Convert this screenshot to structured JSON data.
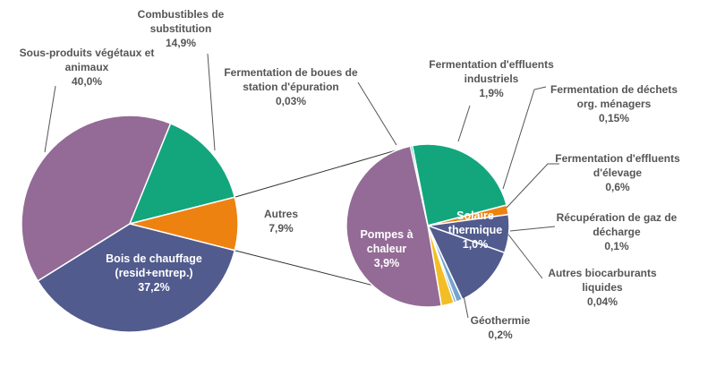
{
  "chart_data": {
    "type": "pie",
    "title": "",
    "colors": {
      "sous_produits": "#936B96",
      "combustibles": "#13A67D",
      "autres": "#EE8210",
      "bois": "#515B8E",
      "solaire": "#515B8E",
      "pompes": "#936B96",
      "geothermie": "#F3BE25",
      "autres_biocarb": "#74A5CF",
      "recup_gaz": "#74A5CF",
      "ferm_elevage": "#515B8E",
      "ferm_menagers": "#EE8210",
      "ferm_industriels": "#13A67D",
      "ferm_boues": "#13A67D",
      "separator": "#ffffff"
    },
    "main_pie": {
      "slices": [
        {
          "key": "sous_produits",
          "lines": [
            "Sous-produits végétaux et",
            "animaux"
          ],
          "pct_label": "40,0%",
          "value": 40.0
        },
        {
          "key": "combustibles",
          "lines": [
            "Combustibles de",
            "substitution"
          ],
          "pct_label": "14,9%",
          "value": 14.9
        },
        {
          "key": "autres",
          "lines": [
            "Autres"
          ],
          "pct_label": "7,9%",
          "value": 7.9
        },
        {
          "key": "bois",
          "lines": [
            "Bois de chauffage",
            "(resid+entrep.)"
          ],
          "pct_label": "37,2%",
          "value": 37.2
        }
      ]
    },
    "secondary_pie": {
      "breakdown_of": "Autres",
      "slices": [
        {
          "key": "ferm_industriels",
          "lines": [
            "Fermentation d'effluents",
            "industriels"
          ],
          "pct_label": "1,9%",
          "value": 1.9
        },
        {
          "key": "ferm_menagers",
          "lines": [
            "Fermentation de déchets",
            "org. ménagers"
          ],
          "pct_label": "0,15%",
          "value": 0.15
        },
        {
          "key": "ferm_elevage",
          "lines": [
            "Fermentation d'effluents",
            "d'élevage"
          ],
          "pct_label": "0,6%",
          "value": 0.6
        },
        {
          "key": "solaire",
          "lines": [
            "Solaire",
            "thermique"
          ],
          "pct_label": "1,0%",
          "value": 1.0
        },
        {
          "key": "recup_gaz",
          "lines": [
            "Récupération de gaz de",
            "décharge"
          ],
          "pct_label": "0,1%",
          "value": 0.1
        },
        {
          "key": "autres_biocarb",
          "lines": [
            "Autres biocarburants",
            "liquides"
          ],
          "pct_label": "0,04%",
          "value": 0.04
        },
        {
          "key": "geothermie",
          "lines": [
            "Géothermie"
          ],
          "pct_label": "0,2%",
          "value": 0.2
        },
        {
          "key": "pompes",
          "lines": [
            "Pompes à",
            "chaleur"
          ],
          "pct_label": "3,9%",
          "value": 3.9
        },
        {
          "key": "ferm_boues",
          "lines": [
            "Fermentation de boues de",
            "station d'épuration"
          ],
          "pct_label": "0,03%",
          "value": 0.03
        }
      ]
    }
  }
}
